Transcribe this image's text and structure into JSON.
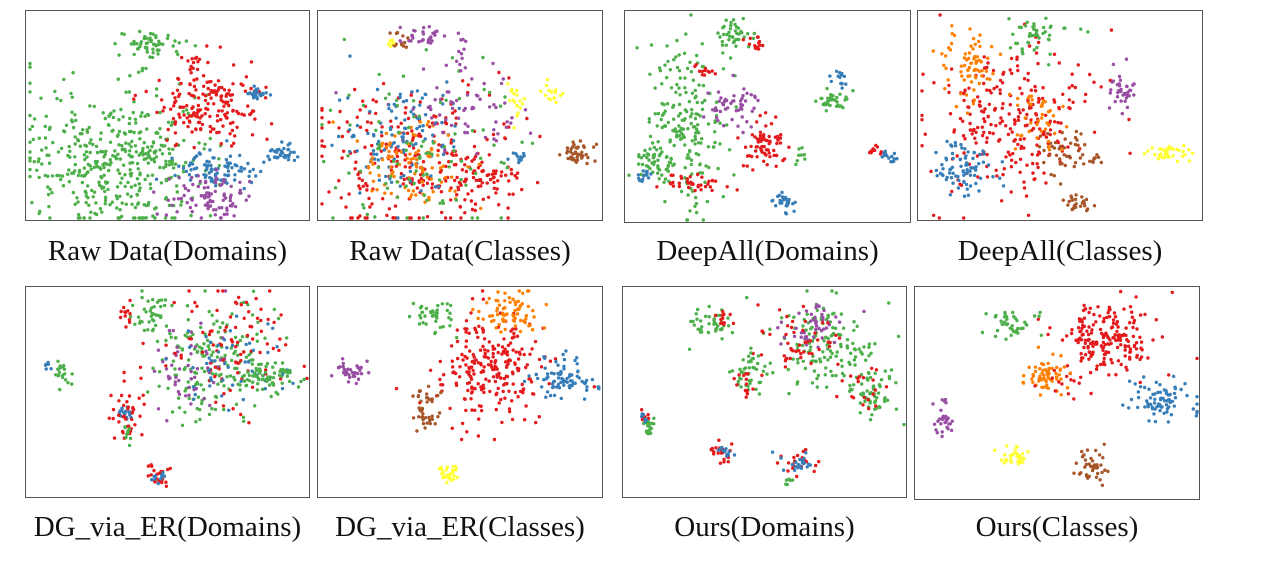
{
  "figure": {
    "palette": {
      "green": "#4daf4a",
      "red": "#e41a1c",
      "blue": "#377eb8",
      "purple": "#984ea3",
      "orange": "#ff7f00",
      "yellow": "#ffff33",
      "brown": "#a65628"
    },
    "panels": [
      {
        "id": "p1",
        "caption": "Raw Data(Domains)"
      },
      {
        "id": "p2",
        "caption": "Raw Data(Classes)"
      },
      {
        "id": "p3",
        "caption": "DeepAll(Domains)"
      },
      {
        "id": "p4",
        "caption": "DeepAll(Classes)"
      },
      {
        "id": "p5",
        "caption": "DG_via_ER(Domains)"
      },
      {
        "id": "p6",
        "caption": "DG_via_ER(Classes)"
      },
      {
        "id": "p7",
        "caption": "Ours(Domains)"
      },
      {
        "id": "p8",
        "caption": "Ours(Classes)"
      }
    ]
  },
  "chart_data": [
    {
      "type": "scatter",
      "title": "Raw Data(Domains)",
      "axes": "none",
      "clusters": [
        {
          "color": "green",
          "cx": 90,
          "cy": 150,
          "sx": 48,
          "sy": 34,
          "n": 420
        },
        {
          "color": "green",
          "cx": 126,
          "cy": 33,
          "sx": 17,
          "sy": 6,
          "n": 55
        },
        {
          "color": "red",
          "cx": 180,
          "cy": 95,
          "sx": 28,
          "sy": 20,
          "n": 180
        },
        {
          "color": "red",
          "cx": 170,
          "cy": 55,
          "sx": 4,
          "sy": 8,
          "n": 12
        },
        {
          "color": "blue",
          "cx": 195,
          "cy": 160,
          "sx": 22,
          "sy": 9,
          "n": 90
        },
        {
          "color": "purple",
          "cx": 185,
          "cy": 186,
          "sx": 18,
          "sy": 11,
          "n": 90
        },
        {
          "color": "blue",
          "cx": 232,
          "cy": 83,
          "sx": 5,
          "sy": 4,
          "n": 25
        },
        {
          "color": "blue",
          "cx": 258,
          "cy": 143,
          "sx": 7,
          "sy": 5,
          "n": 35
        },
        {
          "color": "green",
          "cx": 120,
          "cy": 145,
          "sx": 6,
          "sy": 4,
          "n": 14
        }
      ]
    },
    {
      "type": "scatter",
      "title": "Raw Data(Classes)",
      "axes": "none",
      "clusters": [
        {
          "color": "red",
          "cx": 100,
          "cy": 145,
          "sx": 50,
          "sy": 40,
          "n": 240
        },
        {
          "color": "red",
          "cx": 160,
          "cy": 170,
          "sx": 18,
          "sy": 14,
          "n": 70
        },
        {
          "color": "blue",
          "cx": 80,
          "cy": 120,
          "sx": 30,
          "sy": 28,
          "n": 120
        },
        {
          "color": "orange",
          "cx": 95,
          "cy": 155,
          "sx": 28,
          "sy": 22,
          "n": 100
        },
        {
          "color": "green",
          "cx": 100,
          "cy": 140,
          "sx": 45,
          "sy": 38,
          "n": 100
        },
        {
          "color": "purple",
          "cx": 150,
          "cy": 100,
          "sx": 30,
          "sy": 20,
          "n": 60
        },
        {
          "color": "purple",
          "cx": 108,
          "cy": 25,
          "sx": 12,
          "sy": 5,
          "n": 30
        },
        {
          "color": "purple",
          "cx": 145,
          "cy": 40,
          "sx": 4,
          "sy": 8,
          "n": 12
        },
        {
          "color": "brown",
          "cx": 80,
          "cy": 30,
          "sx": 6,
          "sy": 5,
          "n": 12
        },
        {
          "color": "yellow",
          "cx": 74,
          "cy": 30,
          "sx": 3,
          "sy": 3,
          "n": 6
        },
        {
          "color": "yellow",
          "cx": 197,
          "cy": 92,
          "sx": 6,
          "sy": 10,
          "n": 18
        },
        {
          "color": "yellow",
          "cx": 232,
          "cy": 83,
          "sx": 5,
          "sy": 5,
          "n": 16
        },
        {
          "color": "brown",
          "cx": 258,
          "cy": 143,
          "sx": 8,
          "sy": 6,
          "n": 40
        },
        {
          "color": "blue",
          "cx": 200,
          "cy": 145,
          "sx": 4,
          "sy": 3,
          "n": 12
        }
      ]
    },
    {
      "type": "scatter",
      "title": "DeepAll(Domains)",
      "axes": "none",
      "clusters": [
        {
          "color": "green",
          "cx": 58,
          "cy": 110,
          "sx": 18,
          "sy": 45,
          "n": 200
        },
        {
          "color": "green",
          "cx": 108,
          "cy": 25,
          "sx": 10,
          "sy": 8,
          "n": 40
        },
        {
          "color": "red",
          "cx": 130,
          "cy": 30,
          "sx": 5,
          "sy": 6,
          "n": 14
        },
        {
          "color": "red",
          "cx": 80,
          "cy": 60,
          "sx": 6,
          "sy": 5,
          "n": 12
        },
        {
          "color": "purple",
          "cx": 108,
          "cy": 92,
          "sx": 14,
          "sy": 12,
          "n": 50
        },
        {
          "color": "red",
          "cx": 138,
          "cy": 135,
          "sx": 12,
          "sy": 15,
          "n": 70
        },
        {
          "color": "green",
          "cx": 30,
          "cy": 150,
          "sx": 10,
          "sy": 8,
          "n": 40
        },
        {
          "color": "red",
          "cx": 65,
          "cy": 173,
          "sx": 18,
          "sy": 4,
          "n": 40
        },
        {
          "color": "blue",
          "cx": 18,
          "cy": 166,
          "sx": 5,
          "sy": 3,
          "n": 14
        },
        {
          "color": "blue",
          "cx": 160,
          "cy": 192,
          "sx": 6,
          "sy": 5,
          "n": 30
        },
        {
          "color": "green",
          "cx": 208,
          "cy": 90,
          "sx": 10,
          "sy": 5,
          "n": 35
        },
        {
          "color": "blue",
          "cx": 215,
          "cy": 72,
          "sx": 4,
          "sy": 5,
          "n": 14
        },
        {
          "color": "red",
          "cx": 248,
          "cy": 140,
          "sx": 7,
          "sy": 3,
          "n": 12
        },
        {
          "color": "blue",
          "cx": 262,
          "cy": 144,
          "sx": 5,
          "sy": 4,
          "n": 14
        },
        {
          "color": "green",
          "cx": 175,
          "cy": 145,
          "sx": 4,
          "sy": 4,
          "n": 8
        }
      ]
    },
    {
      "type": "scatter",
      "title": "DeepAll(Classes)",
      "axes": "none",
      "clusters": [
        {
          "color": "red",
          "cx": 95,
          "cy": 110,
          "sx": 40,
          "sy": 38,
          "n": 260
        },
        {
          "color": "orange",
          "cx": 50,
          "cy": 55,
          "sx": 14,
          "sy": 18,
          "n": 70
        },
        {
          "color": "green",
          "cx": 120,
          "cy": 25,
          "sx": 14,
          "sy": 10,
          "n": 45
        },
        {
          "color": "blue",
          "cx": 45,
          "cy": 155,
          "sx": 16,
          "sy": 14,
          "n": 80
        },
        {
          "color": "brown",
          "cx": 147,
          "cy": 140,
          "sx": 12,
          "sy": 12,
          "n": 45
        },
        {
          "color": "purple",
          "cx": 205,
          "cy": 80,
          "sx": 8,
          "sy": 10,
          "n": 40
        },
        {
          "color": "yellow",
          "cx": 250,
          "cy": 142,
          "sx": 12,
          "sy": 4,
          "n": 40
        },
        {
          "color": "brown",
          "cx": 158,
          "cy": 192,
          "sx": 6,
          "sy": 5,
          "n": 25
        },
        {
          "color": "orange",
          "cx": 120,
          "cy": 108,
          "sx": 14,
          "sy": 16,
          "n": 40
        },
        {
          "color": "brown",
          "cx": 177,
          "cy": 145,
          "sx": 3,
          "sy": 5,
          "n": 8
        }
      ]
    },
    {
      "type": "scatter",
      "title": "DG_via_ER(Domains)",
      "axes": "none",
      "clusters": [
        {
          "color": "green",
          "cx": 190,
          "cy": 75,
          "sx": 32,
          "sy": 30,
          "n": 180
        },
        {
          "color": "purple",
          "cx": 165,
          "cy": 78,
          "sx": 18,
          "sy": 22,
          "n": 55
        },
        {
          "color": "red",
          "cx": 200,
          "cy": 55,
          "sx": 35,
          "sy": 35,
          "n": 90
        },
        {
          "color": "blue",
          "cx": 210,
          "cy": 80,
          "sx": 30,
          "sy": 28,
          "n": 50
        },
        {
          "color": "green",
          "cx": 240,
          "cy": 90,
          "sx": 18,
          "sy": 8,
          "n": 60
        },
        {
          "color": "green",
          "cx": 123,
          "cy": 25,
          "sx": 12,
          "sy": 8,
          "n": 35
        },
        {
          "color": "red",
          "cx": 100,
          "cy": 30,
          "sx": 4,
          "sy": 6,
          "n": 12
        },
        {
          "color": "blue",
          "cx": 100,
          "cy": 125,
          "sx": 6,
          "sy": 4,
          "n": 20
        },
        {
          "color": "red",
          "cx": 100,
          "cy": 125,
          "sx": 10,
          "sy": 20,
          "n": 40
        },
        {
          "color": "green",
          "cx": 102,
          "cy": 145,
          "sx": 3,
          "sy": 4,
          "n": 10
        },
        {
          "color": "red",
          "cx": 132,
          "cy": 188,
          "sx": 5,
          "sy": 6,
          "n": 25
        },
        {
          "color": "blue",
          "cx": 132,
          "cy": 193,
          "sx": 5,
          "sy": 3,
          "n": 10
        },
        {
          "color": "green",
          "cx": 36,
          "cy": 87,
          "sx": 5,
          "sy": 7,
          "n": 20
        },
        {
          "color": "blue",
          "cx": 20,
          "cy": 80,
          "sx": 3,
          "sy": 2,
          "n": 6
        }
      ]
    },
    {
      "type": "scatter",
      "title": "DG_via_ER(Classes)",
      "axes": "none",
      "clusters": [
        {
          "color": "red",
          "cx": 170,
          "cy": 85,
          "sx": 28,
          "sy": 26,
          "n": 240
        },
        {
          "color": "orange",
          "cx": 192,
          "cy": 24,
          "sx": 15,
          "sy": 10,
          "n": 70
        },
        {
          "color": "green",
          "cx": 118,
          "cy": 28,
          "sx": 12,
          "sy": 8,
          "n": 40
        },
        {
          "color": "blue",
          "cx": 244,
          "cy": 91,
          "sx": 16,
          "sy": 10,
          "n": 80
        },
        {
          "color": "purple",
          "cx": 32,
          "cy": 85,
          "sx": 9,
          "sy": 6,
          "n": 35
        },
        {
          "color": "brown",
          "cx": 107,
          "cy": 125,
          "sx": 8,
          "sy": 14,
          "n": 40
        },
        {
          "color": "yellow",
          "cx": 132,
          "cy": 188,
          "sx": 5,
          "sy": 5,
          "n": 30
        }
      ]
    },
    {
      "type": "scatter",
      "title": "Ours(Domains)",
      "axes": "none",
      "clusters": [
        {
          "color": "green",
          "cx": 200,
          "cy": 60,
          "sx": 28,
          "sy": 22,
          "n": 140
        },
        {
          "color": "purple",
          "cx": 188,
          "cy": 38,
          "sx": 14,
          "sy": 10,
          "n": 45
        },
        {
          "color": "red",
          "cx": 175,
          "cy": 55,
          "sx": 20,
          "sy": 15,
          "n": 50
        },
        {
          "color": "green",
          "cx": 90,
          "cy": 35,
          "sx": 12,
          "sy": 8,
          "n": 40
        },
        {
          "color": "red",
          "cx": 100,
          "cy": 32,
          "sx": 5,
          "sy": 5,
          "n": 12
        },
        {
          "color": "green",
          "cx": 125,
          "cy": 88,
          "sx": 10,
          "sy": 10,
          "n": 40
        },
        {
          "color": "red",
          "cx": 124,
          "cy": 95,
          "sx": 8,
          "sy": 6,
          "n": 15
        },
        {
          "color": "green",
          "cx": 250,
          "cy": 105,
          "sx": 12,
          "sy": 12,
          "n": 60
        },
        {
          "color": "red",
          "cx": 240,
          "cy": 103,
          "sx": 10,
          "sy": 10,
          "n": 20
        },
        {
          "color": "red",
          "cx": 100,
          "cy": 165,
          "sx": 6,
          "sy": 5,
          "n": 25
        },
        {
          "color": "blue",
          "cx": 100,
          "cy": 163,
          "sx": 4,
          "sy": 3,
          "n": 12
        },
        {
          "color": "red",
          "cx": 175,
          "cy": 175,
          "sx": 8,
          "sy": 7,
          "n": 20
        },
        {
          "color": "blue",
          "cx": 176,
          "cy": 175,
          "sx": 7,
          "sy": 5,
          "n": 22
        },
        {
          "color": "green",
          "cx": 165,
          "cy": 195,
          "sx": 3,
          "sy": 3,
          "n": 6
        },
        {
          "color": "green",
          "cx": 25,
          "cy": 140,
          "sx": 3,
          "sy": 8,
          "n": 18
        },
        {
          "color": "red",
          "cx": 20,
          "cy": 130,
          "sx": 3,
          "sy": 3,
          "n": 6
        },
        {
          "color": "blue",
          "cx": 22,
          "cy": 128,
          "sx": 3,
          "sy": 3,
          "n": 6
        }
      ]
    },
    {
      "type": "scatter",
      "title": "Ours(Classes)",
      "axes": "none",
      "clusters": [
        {
          "color": "red",
          "cx": 190,
          "cy": 50,
          "sx": 26,
          "sy": 18,
          "n": 200
        },
        {
          "color": "orange",
          "cx": 130,
          "cy": 90,
          "sx": 12,
          "sy": 10,
          "n": 60
        },
        {
          "color": "green",
          "cx": 95,
          "cy": 35,
          "sx": 12,
          "sy": 7,
          "n": 40
        },
        {
          "color": "blue",
          "cx": 248,
          "cy": 108,
          "sx": 16,
          "sy": 12,
          "n": 80
        },
        {
          "color": "purple",
          "cx": 28,
          "cy": 135,
          "sx": 5,
          "sy": 10,
          "n": 30
        },
        {
          "color": "yellow",
          "cx": 100,
          "cy": 168,
          "sx": 6,
          "sy": 5,
          "n": 30
        },
        {
          "color": "brown",
          "cx": 178,
          "cy": 180,
          "sx": 9,
          "sy": 8,
          "n": 40
        },
        {
          "color": "red",
          "cx": 150,
          "cy": 95,
          "sx": 10,
          "sy": 8,
          "n": 12
        }
      ]
    }
  ]
}
